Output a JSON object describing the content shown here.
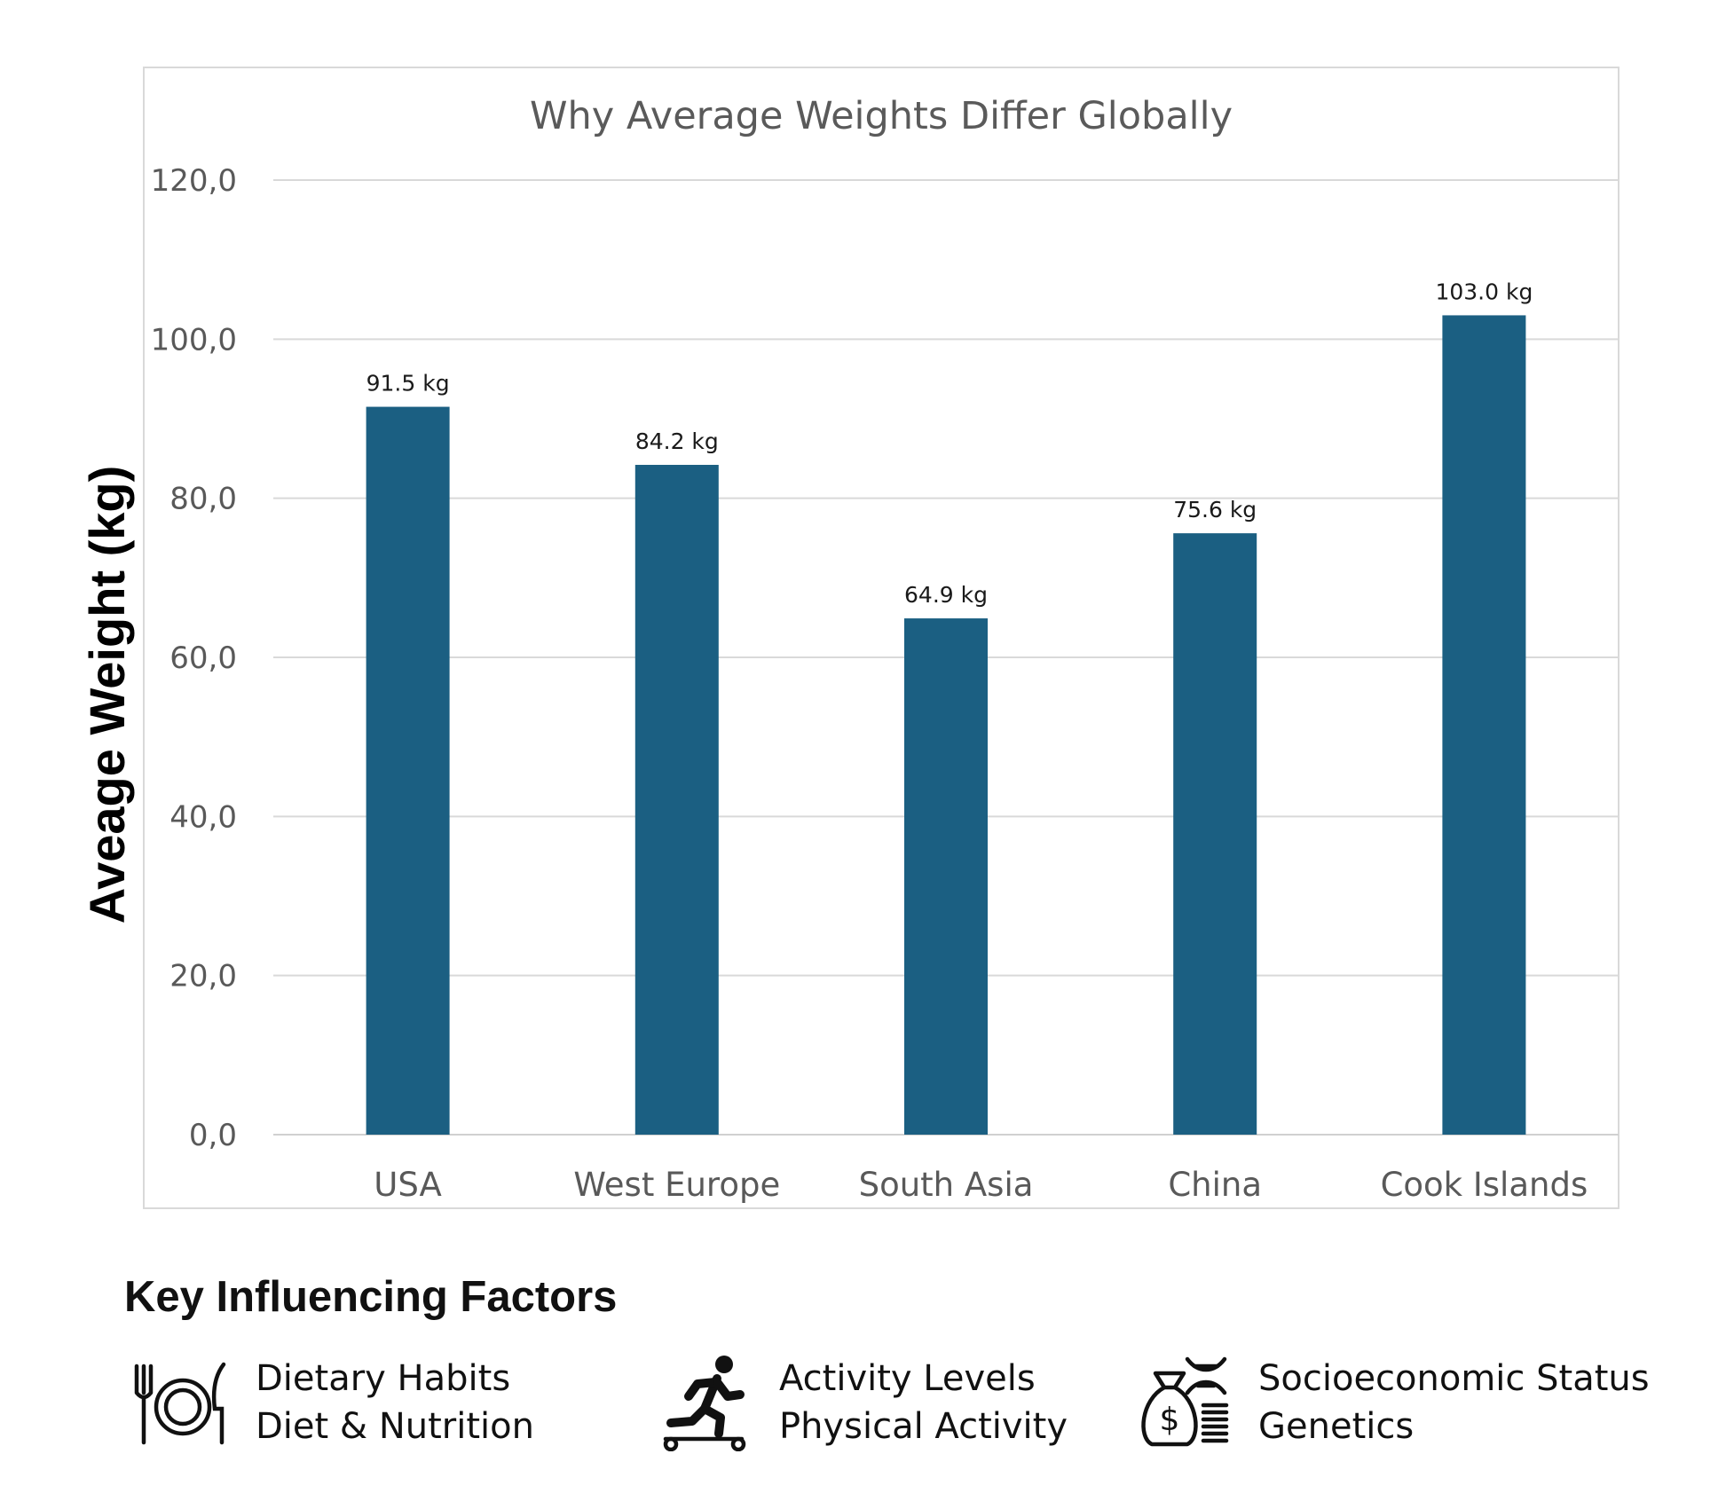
{
  "chart_data": {
    "type": "bar",
    "title": "Why Average Weights Differ Globally",
    "ylabel": "Aveage Weight (kg)",
    "xlabel": "",
    "ylim": [
      0,
      120
    ],
    "yticks": [
      "0,0",
      "20,0",
      "40,0",
      "60,0",
      "80,0",
      "100,0",
      "120,0"
    ],
    "ytick_values": [
      0,
      20,
      40,
      60,
      80,
      100,
      120
    ],
    "categories": [
      "USA",
      "West Europe",
      "South Asia",
      "China",
      "Cook Islands"
    ],
    "values": [
      91.5,
      84.2,
      64.9,
      75.6,
      103.0
    ],
    "data_labels": [
      "91.5 kg",
      "84.2 kg",
      "64.9 kg",
      "75.6 kg",
      "103.0 kg"
    ],
    "bar_color": "#1b5f82",
    "grid": true,
    "legend": "none"
  },
  "factors": {
    "heading": "Key Influencing Factors",
    "items": [
      {
        "icon": "plate-fork-knife-icon",
        "line1": "Dietary Habits",
        "line2": "Diet & Nutrition"
      },
      {
        "icon": "running-person-icon",
        "line1": "Activity Levels",
        "line2": "Physical Activity"
      },
      {
        "icon": "money-bag-dna-icon",
        "line1": "Socioeconomic Status",
        "line2": "Genetics"
      }
    ]
  }
}
